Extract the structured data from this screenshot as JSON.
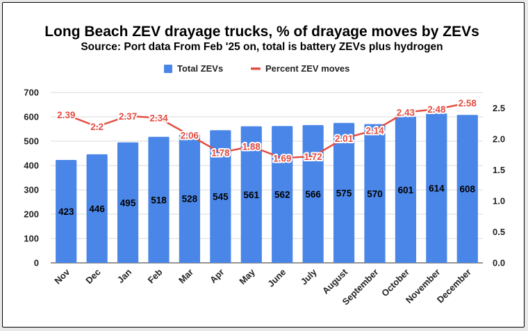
{
  "chart_data": {
    "type": "bar",
    "title": "Long Beach ZEV drayage trucks, % of drayage moves by ZEVs",
    "subtitle": "Source: Port data  From Feb '25 on, total is battery ZEVs plus hydrogen",
    "categories": [
      "Nov",
      "Dec",
      "Jan",
      "Feb",
      "Mar",
      "Apr",
      "May",
      "June",
      "July",
      "August",
      "September",
      "October",
      "November",
      "December"
    ],
    "series": [
      {
        "name": "Total ZEVs",
        "type": "bar",
        "axis": "left",
        "color": "#4a86e8",
        "values": [
          423,
          446,
          495,
          518,
          528,
          545,
          561,
          562,
          566,
          575,
          570,
          601,
          614,
          608
        ],
        "labels": [
          "423",
          "446",
          "495",
          "518",
          "528",
          "545",
          "561",
          "562",
          "566",
          "575",
          "570",
          "601",
          "614",
          "608"
        ]
      },
      {
        "name": "Percent ZEV moves",
        "type": "line",
        "axis": "right",
        "color": "#e24d42",
        "values": [
          2.39,
          2.2,
          2.37,
          2.34,
          2.06,
          1.78,
          1.88,
          1.69,
          1.72,
          2.01,
          2.14,
          2.43,
          2.48,
          2.58
        ],
        "labels": [
          "2.39",
          "2.2",
          "2.37",
          "2.34",
          "2.06",
          "1.78",
          "1.88",
          "1.69",
          "1.72",
          "2.01",
          "2.14",
          "2.43",
          "2.48",
          "2.58"
        ]
      }
    ],
    "y_left": {
      "min": 0,
      "max": 700,
      "ticks": [
        "0",
        "100",
        "200",
        "300",
        "400",
        "500",
        "600",
        "700"
      ]
    },
    "y_right": {
      "min": 0,
      "max": 2.75,
      "ticks": [
        "0.0",
        "0.5",
        "1.0",
        "1.5",
        "2.0",
        "2.5"
      ],
      "tick_values": [
        0,
        0.5,
        1.0,
        1.5,
        2.0,
        2.5
      ]
    },
    "grid": true,
    "grid_color": "#d9d9d9",
    "legend_position": "top"
  }
}
